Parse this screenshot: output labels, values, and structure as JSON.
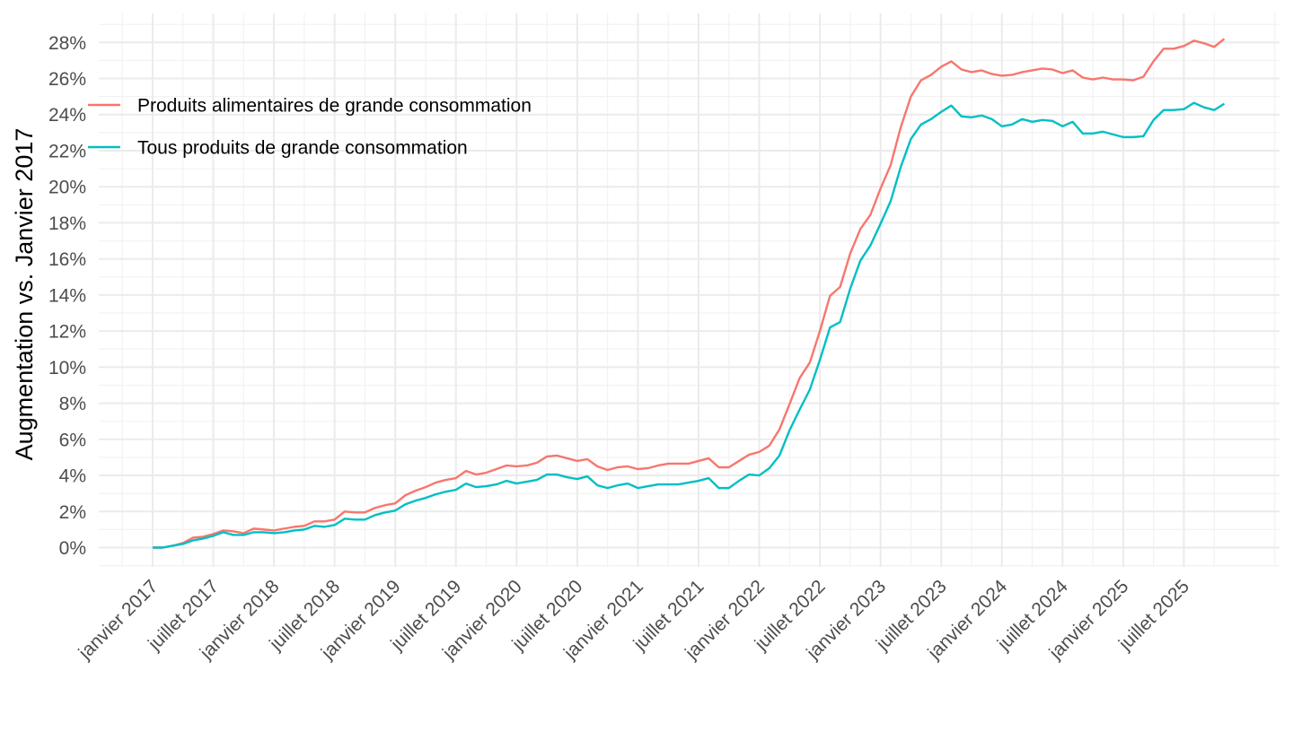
{
  "chart_data": {
    "type": "line",
    "title": "",
    "xlabel": "",
    "ylabel": "Augmentation vs. Janvier 2017",
    "ylim": [
      -1,
      28.5
    ],
    "y_ticks": [
      0,
      2,
      4,
      6,
      8,
      10,
      12,
      14,
      16,
      18,
      20,
      22,
      24,
      26,
      28
    ],
    "y_tick_labels": [
      "0%",
      "2%",
      "4%",
      "6%",
      "8%",
      "10%",
      "12%",
      "14%",
      "16%",
      "18%",
      "20%",
      "22%",
      "24%",
      "26%",
      "28%"
    ],
    "x_start": "2017-01",
    "x_ticks": [
      "2017-01",
      "2017-07",
      "2018-01",
      "2018-07",
      "2019-01",
      "2019-07",
      "2020-01",
      "2020-07",
      "2021-01",
      "2021-07",
      "2022-01",
      "2022-07",
      "2023-01",
      "2023-07",
      "2024-01",
      "2024-07",
      "2025-01",
      "2025-07"
    ],
    "x_tick_labels": [
      "janvier 2017",
      "juillet 2017",
      "janvier 2018",
      "juillet 2018",
      "janvier 2019",
      "juillet 2019",
      "janvier 2020",
      "juillet 2020",
      "janvier 2021",
      "juillet 2021",
      "janvier 2022",
      "juillet 2022",
      "janvier 2023",
      "juillet 2023",
      "janvier 2024",
      "juillet 2024",
      "janvier 2025",
      "juillet 2025"
    ],
    "grid": true,
    "legend_position": "top-left",
    "series": [
      {
        "name": "Produits alimentaires de grande consommation",
        "color": "#F8766D",
        "values": [
          0,
          0,
          0.1,
          0.25,
          0.55,
          0.6,
          0.75,
          0.95,
          0.9,
          0.8,
          1.05,
          1.0,
          0.95,
          1.05,
          1.15,
          1.2,
          1.45,
          1.45,
          1.55,
          2.0,
          1.95,
          1.95,
          2.2,
          2.35,
          2.45,
          2.9,
          3.15,
          3.35,
          3.6,
          3.75,
          3.85,
          4.25,
          4.05,
          4.15,
          4.35,
          4.55,
          4.5,
          4.55,
          4.7,
          5.05,
          5.1,
          4.95,
          4.8,
          4.9,
          4.5,
          4.3,
          4.45,
          4.5,
          4.35,
          4.4,
          4.55,
          4.65,
          4.65,
          4.65,
          4.8,
          4.95,
          4.45,
          4.45,
          4.8,
          5.15,
          5.3,
          5.65,
          6.55,
          7.95,
          9.4,
          10.25,
          12.0,
          13.95,
          14.45,
          16.3,
          17.65,
          18.45,
          19.9,
          21.2,
          23.3,
          25.0,
          25.9,
          26.2,
          26.65,
          26.95,
          26.5,
          26.35,
          26.45,
          26.25,
          26.15,
          26.2,
          26.35,
          26.45,
          26.55,
          26.5,
          26.3,
          26.45,
          26.05,
          25.95,
          26.05,
          25.95,
          25.95,
          25.9,
          26.1,
          26.95,
          27.65,
          27.65,
          27.8,
          28.1,
          27.95,
          27.75,
          28.2
        ]
      },
      {
        "name": "Tous produits de grande consommation",
        "color": "#00BFC4",
        "values": [
          0,
          0,
          0.1,
          0.2,
          0.4,
          0.5,
          0.65,
          0.85,
          0.7,
          0.7,
          0.85,
          0.85,
          0.8,
          0.85,
          0.95,
          1.0,
          1.2,
          1.15,
          1.25,
          1.6,
          1.55,
          1.55,
          1.8,
          1.95,
          2.05,
          2.4,
          2.6,
          2.75,
          2.95,
          3.1,
          3.2,
          3.55,
          3.35,
          3.4,
          3.5,
          3.7,
          3.55,
          3.65,
          3.75,
          4.05,
          4.05,
          3.9,
          3.8,
          3.95,
          3.45,
          3.3,
          3.45,
          3.55,
          3.3,
          3.4,
          3.5,
          3.5,
          3.5,
          3.6,
          3.7,
          3.85,
          3.3,
          3.3,
          3.7,
          4.05,
          4.0,
          4.4,
          5.1,
          6.5,
          7.65,
          8.75,
          10.4,
          12.2,
          12.5,
          14.35,
          15.9,
          16.75,
          17.95,
          19.2,
          21.1,
          22.65,
          23.45,
          23.75,
          24.15,
          24.5,
          23.9,
          23.85,
          23.95,
          23.75,
          23.35,
          23.45,
          23.75,
          23.6,
          23.7,
          23.65,
          23.35,
          23.6,
          22.95,
          22.95,
          23.05,
          22.9,
          22.75,
          22.75,
          22.8,
          23.7,
          24.25,
          24.25,
          24.3,
          24.65,
          24.4,
          24.25,
          24.6
        ]
      }
    ]
  }
}
